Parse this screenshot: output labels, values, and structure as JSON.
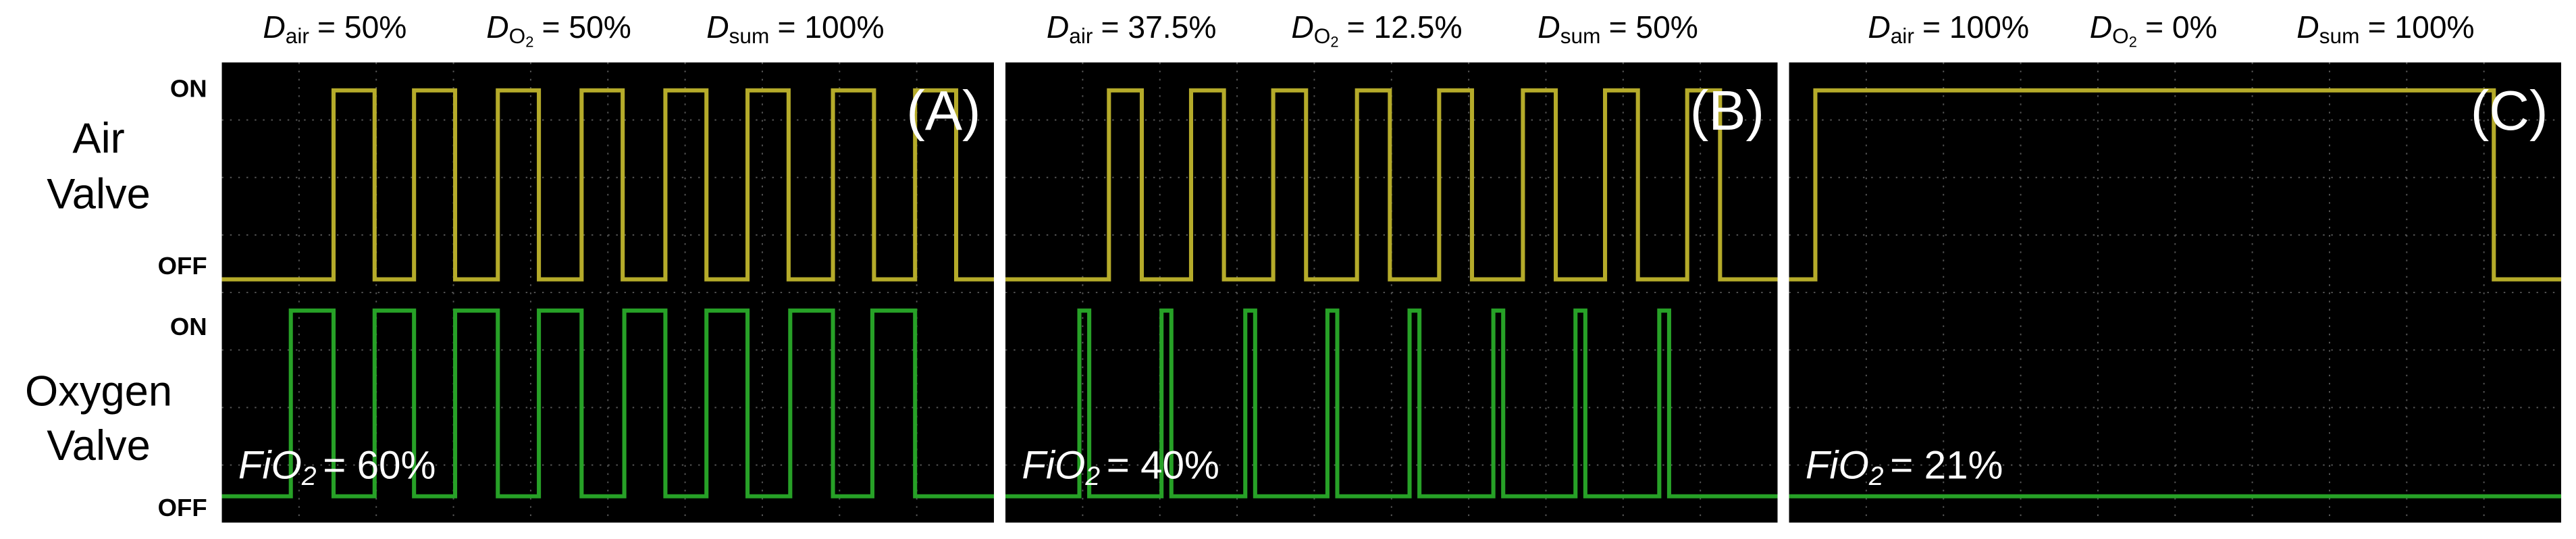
{
  "labels": {
    "air_on": "ON",
    "air_name": [
      "Air",
      "Valve"
    ],
    "air_off": "OFF",
    "oxygen_on": "ON",
    "oxygen_name": [
      "Oxygen",
      "Valve"
    ],
    "oxygen_off": "OFF"
  },
  "panels": [
    {
      "letter": "(A)",
      "header": [
        {
          "symbol": "D",
          "sub": "air",
          "text": "= 50%"
        },
        {
          "symbol": "D",
          "sub": "O",
          "subsub": "2",
          "text": "= 50%"
        },
        {
          "symbol": "D",
          "sub": "sum",
          "text": "= 100%"
        }
      ],
      "fio2": {
        "symbol": "FiO",
        "sub": "2",
        "text": "= 60%"
      }
    },
    {
      "letter": "(B)",
      "header": [
        {
          "symbol": "D",
          "sub": "air",
          "text": "= 37.5%"
        },
        {
          "symbol": "D",
          "sub": "O",
          "subsub": "2",
          "text": "= 12.5%"
        },
        {
          "symbol": "D",
          "sub": "sum",
          "text": "= 50%"
        }
      ],
      "fio2": {
        "symbol": "FiO",
        "sub": "2",
        "text": "= 40%"
      }
    },
    {
      "letter": "(C)",
      "header": [
        {
          "symbol": "D",
          "sub": "air",
          "text": "= 100%"
        },
        {
          "symbol": "D",
          "sub": "O",
          "subsub": "2",
          "text": "= 0%"
        },
        {
          "symbol": "D",
          "sub": "sum",
          "text": "= 100%"
        }
      ],
      "fio2": {
        "symbol": "FiO",
        "sub": "2",
        "text": "= 21%"
      }
    }
  ]
}
